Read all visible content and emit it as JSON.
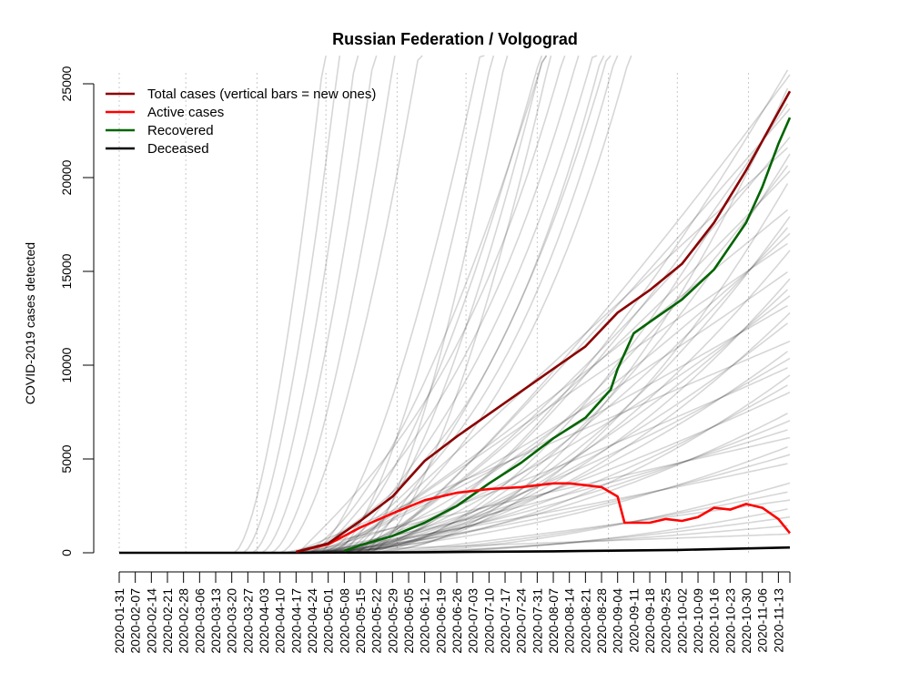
{
  "chart_data": {
    "type": "line",
    "title": "Russian Federation / Volgograd",
    "ylabel": "COVID-2019 cases detected",
    "xlabel": "",
    "x_range": [
      "2020-01-31",
      "2020-11-18"
    ],
    "ylim": [
      0,
      25000
    ],
    "y_ticks": [
      0,
      5000,
      10000,
      15000,
      20000,
      25000
    ],
    "x_tick_labels": [
      "2020-01-31",
      "2020-02-07",
      "2020-02-14",
      "2020-02-21",
      "2020-02-28",
      "2020-03-06",
      "2020-03-13",
      "2020-03-20",
      "2020-03-27",
      "2020-04-03",
      "2020-04-10",
      "2020-04-17",
      "2020-04-24",
      "2020-05-01",
      "2020-05-08",
      "2020-05-15",
      "2020-05-22",
      "2020-05-29",
      "2020-06-05",
      "2020-06-12",
      "2020-06-19",
      "2020-06-26",
      "2020-07-03",
      "2020-07-10",
      "2020-07-17",
      "2020-07-24",
      "2020-07-31",
      "2020-08-07",
      "2020-08-14",
      "2020-08-21",
      "2020-08-28",
      "2020-09-04",
      "2020-09-11",
      "2020-09-18",
      "2020-09-25",
      "2020-10-02",
      "2020-10-09",
      "2020-10-16",
      "2020-10-23",
      "2020-10-30",
      "2020-11-06",
      "2020-11-13"
    ],
    "vertical_gridlines": [
      "2020-01-31",
      "2020-02-29",
      "2020-03-31",
      "2020-04-30",
      "2020-05-31",
      "2020-06-30",
      "2020-07-31",
      "2020-08-31",
      "2020-09-30",
      "2020-10-31"
    ],
    "legend_position": "top-left",
    "legend": [
      {
        "name": "Total cases (vertical bars = new ones)",
        "color": "#8b0000"
      },
      {
        "name": "Active cases",
        "color": "#ff0000"
      },
      {
        "name": "Recovered",
        "color": "#006400"
      },
      {
        "name": "Deceased",
        "color": "#000000"
      }
    ],
    "series": [
      {
        "name": "Total cases",
        "color": "#8b0000",
        "x": [
          "2020-04-17",
          "2020-05-01",
          "2020-05-15",
          "2020-05-29",
          "2020-06-12",
          "2020-06-26",
          "2020-07-10",
          "2020-07-24",
          "2020-08-07",
          "2020-08-21",
          "2020-09-04",
          "2020-09-18",
          "2020-10-02",
          "2020-10-16",
          "2020-10-30",
          "2020-11-18"
        ],
        "y": [
          50,
          500,
          1700,
          3000,
          4900,
          6200,
          7400,
          8600,
          9800,
          11000,
          12800,
          14000,
          15400,
          17600,
          20400,
          24600
        ]
      },
      {
        "name": "Active cases",
        "color": "#ff0000",
        "x": [
          "2020-04-17",
          "2020-05-01",
          "2020-05-15",
          "2020-05-29",
          "2020-06-12",
          "2020-06-26",
          "2020-07-10",
          "2020-07-24",
          "2020-08-07",
          "2020-08-14",
          "2020-08-21",
          "2020-08-28",
          "2020-09-04",
          "2020-09-07",
          "2020-09-11",
          "2020-09-18",
          "2020-09-25",
          "2020-10-02",
          "2020-10-09",
          "2020-10-16",
          "2020-10-23",
          "2020-10-30",
          "2020-11-06",
          "2020-11-13",
          "2020-11-18"
        ],
        "y": [
          50,
          450,
          1350,
          2100,
          2800,
          3200,
          3400,
          3500,
          3700,
          3700,
          3600,
          3500,
          3000,
          1600,
          1600,
          1600,
          1800,
          1700,
          1900,
          2400,
          2300,
          2600,
          2400,
          1800,
          1050
        ]
      },
      {
        "name": "Recovered",
        "color": "#006400",
        "x": [
          "2020-05-08",
          "2020-05-15",
          "2020-05-29",
          "2020-06-12",
          "2020-06-26",
          "2020-07-10",
          "2020-07-24",
          "2020-08-07",
          "2020-08-21",
          "2020-09-01",
          "2020-09-04",
          "2020-09-11",
          "2020-09-18",
          "2020-10-02",
          "2020-10-16",
          "2020-10-30",
          "2020-11-06",
          "2020-11-13",
          "2020-11-18"
        ],
        "y": [
          100,
          400,
          900,
          1600,
          2500,
          3700,
          4800,
          6100,
          7200,
          8700,
          9800,
          11700,
          12300,
          13500,
          15100,
          17600,
          19500,
          21800,
          23200
        ]
      },
      {
        "name": "Deceased",
        "color": "#000000",
        "x": [
          "2020-01-31",
          "2020-04-17",
          "2020-06-12",
          "2020-08-07",
          "2020-09-30",
          "2020-11-18"
        ],
        "y": [
          0,
          0,
          30,
          80,
          150,
          280
        ]
      }
    ]
  }
}
